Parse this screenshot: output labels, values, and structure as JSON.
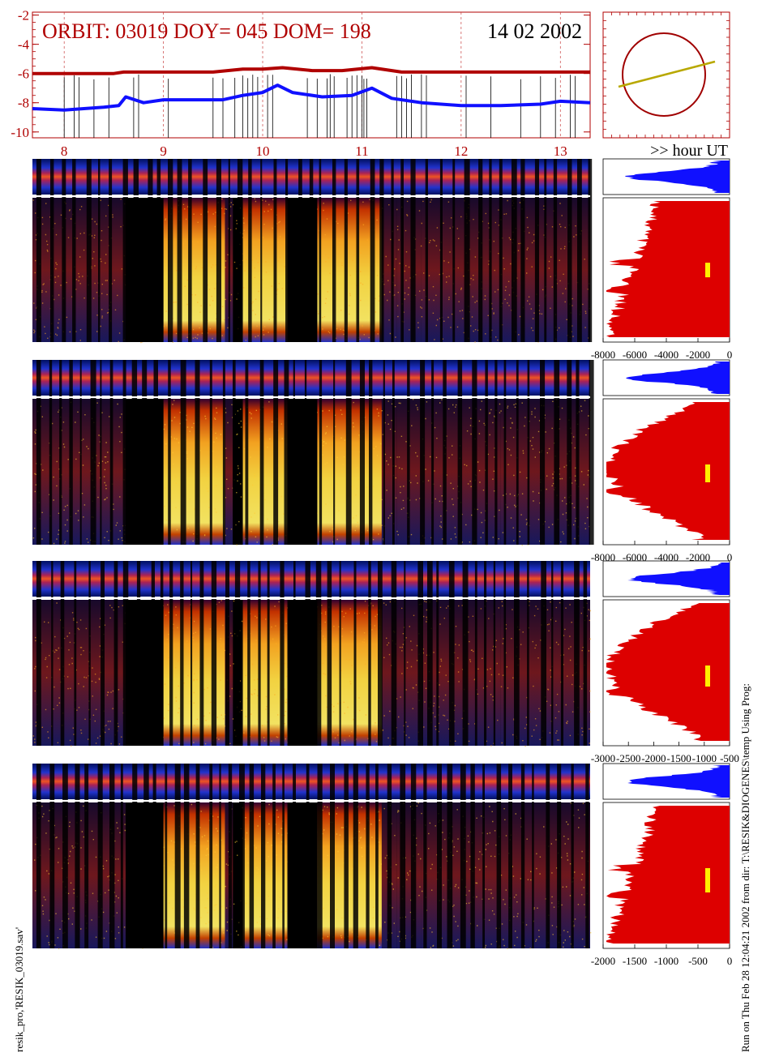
{
  "header": {
    "orbit_text": "ORBIT: 03019 DOY=  045 DOM=  198",
    "date_text": "14 02 2002"
  },
  "x_axis": {
    "label": ">> hour UT",
    "hours": [
      "8",
      "9",
      "10",
      "11",
      "12",
      "13"
    ],
    "range": [
      7.68,
      13.3
    ]
  },
  "chart_data": [
    {
      "type": "line",
      "y_ticks": [
        "-2",
        "-4",
        "-6",
        "-8",
        "-10"
      ],
      "ylim": [
        -10.4,
        -1.8
      ],
      "xlim": [
        7.68,
        13.3
      ],
      "series": [
        {
          "color": "#b00000",
          "x": [
            7.68,
            8.0,
            8.5,
            8.6,
            9.0,
            9.5,
            9.8,
            10.0,
            10.2,
            10.5,
            10.8,
            11.1,
            11.4,
            11.8,
            12.2,
            12.6,
            13.0,
            13.3
          ],
          "y": [
            -6.0,
            -6.0,
            -6.0,
            -5.9,
            -5.9,
            -5.9,
            -5.7,
            -5.7,
            -5.6,
            -5.8,
            -5.8,
            -5.6,
            -5.9,
            -5.9,
            -5.9,
            -5.9,
            -5.9,
            -5.9
          ]
        },
        {
          "color": "#1010ff",
          "x": [
            7.68,
            8.0,
            8.4,
            8.55,
            8.62,
            8.8,
            9.0,
            9.3,
            9.6,
            9.8,
            10.0,
            10.15,
            10.3,
            10.6,
            10.9,
            11.1,
            11.3,
            11.6,
            12.0,
            12.4,
            12.8,
            13.0,
            13.3
          ],
          "y": [
            -8.4,
            -8.5,
            -8.3,
            -8.2,
            -7.6,
            -8.0,
            -7.8,
            -7.8,
            -7.8,
            -7.5,
            -7.3,
            -6.8,
            -7.3,
            -7.6,
            -7.5,
            -7.0,
            -7.7,
            -8.0,
            -8.2,
            -8.2,
            -8.1,
            -7.9,
            -8.0
          ]
        }
      ]
    },
    {
      "type": "heatmap",
      "panels": 4,
      "hist_ticks": [
        [
          "-8000",
          "-6000",
          "-4000",
          "-2000",
          "0"
        ],
        [
          "-8000",
          "-6000",
          "-4000",
          "-2000",
          "0"
        ],
        [
          "-3000",
          "-2500",
          "-2000",
          "-1500",
          "-1000",
          "-500"
        ],
        [
          "-2000",
          "-1500",
          "-1000",
          "-500",
          "0"
        ]
      ],
      "colors": {
        "hist_fill": "#dd0000",
        "band_fill": "#1010ff",
        "marker": "#ffee00"
      }
    }
  ],
  "side_texts": {
    "left": "resik_pro,'RESIK_03019.sav'",
    "right": "Run on Thu Feb 28 12:04:21 2002  from dir: T:\\RESIK&DIOGENES\\temp Using Prog:"
  }
}
